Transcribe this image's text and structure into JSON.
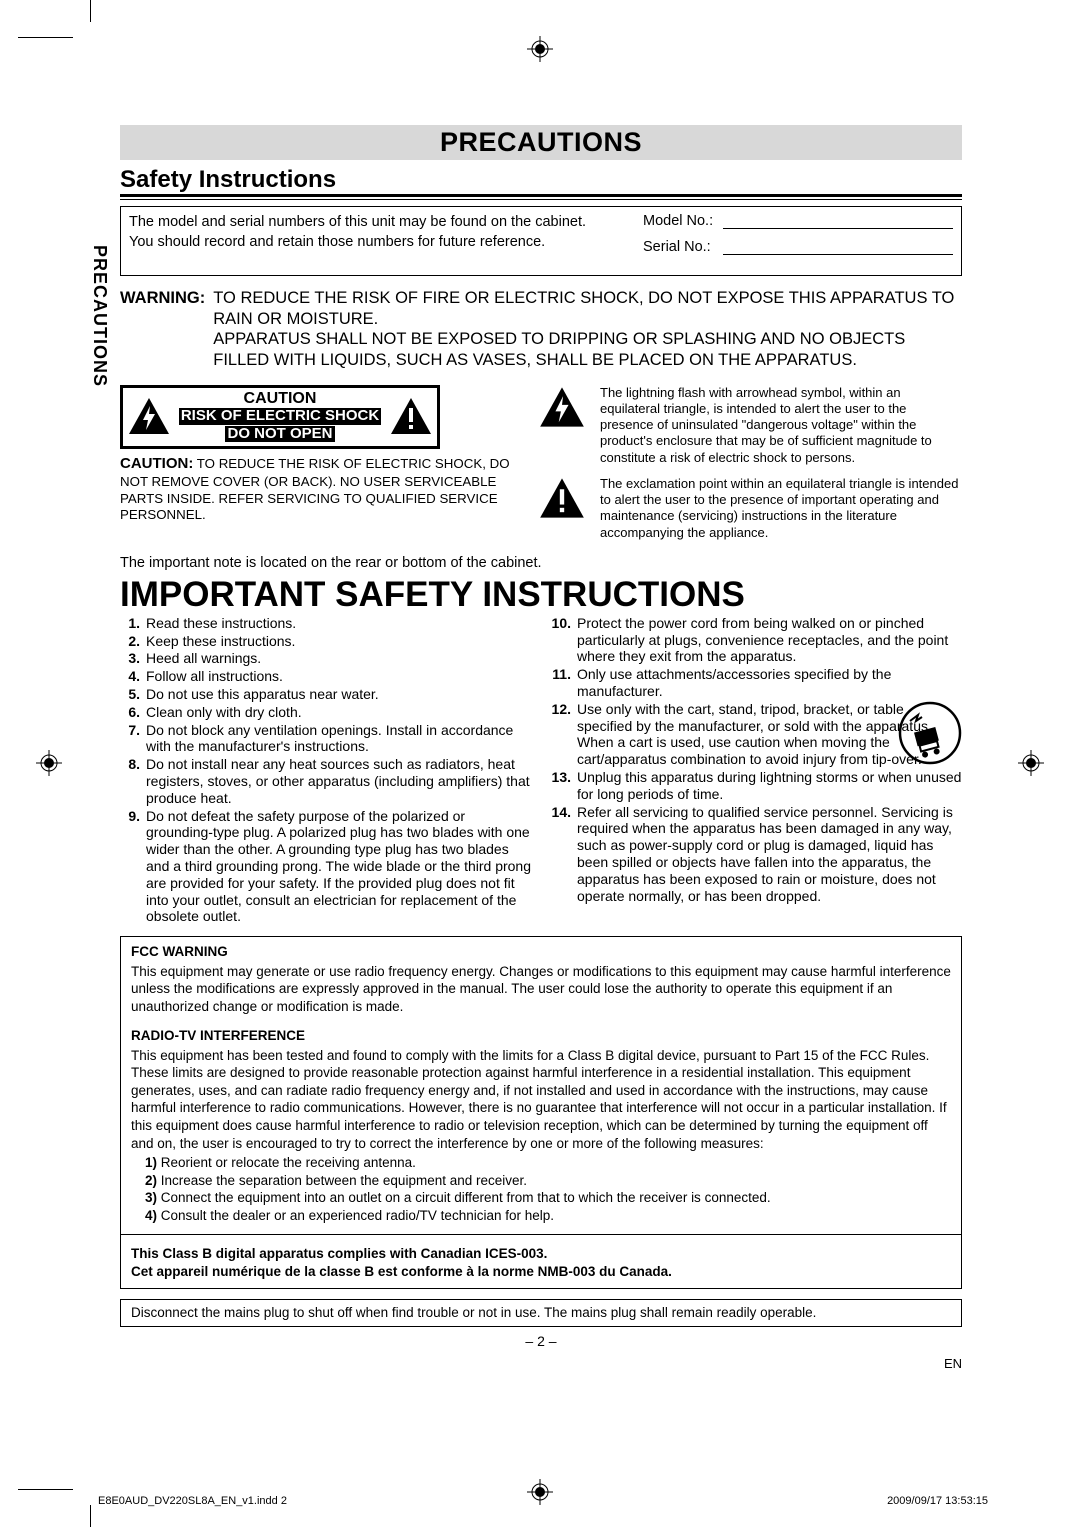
{
  "tab_label": "PRECAUTIONS",
  "title": "PRECAUTIONS",
  "subtitle": "Safety Instructions",
  "record": {
    "text1": "The model and serial numbers of this unit may be found on the cabinet.",
    "text2": "You should record and retain those numbers for future reference.",
    "model_label": "Model No.:",
    "serial_label": "Serial No.:"
  },
  "warning": {
    "label": "WARNING:",
    "line1": "TO REDUCE THE RISK OF FIRE OR ELECTRIC SHOCK, DO NOT EXPOSE THIS APPARATUS TO RAIN OR MOISTURE.",
    "line2": "APPARATUS SHALL NOT BE EXPOSED TO DRIPPING OR SPLASHING AND NO OBJECTS FILLED WITH LIQUIDS, SUCH AS VASES, SHALL BE PLACED ON THE APPARATUS."
  },
  "caution_box": {
    "line1": "CAUTION",
    "line2": "RISK OF ELECTRIC SHOCK",
    "line3": "DO NOT OPEN"
  },
  "caution_sub": {
    "bold": "CAUTION:",
    "text": " TO REDUCE THE RISK OF ELECTRIC SHOCK, DO NOT REMOVE COVER (OR BACK). NO USER SERVICEABLE PARTS INSIDE. REFER SERVICING TO QUALIFIED SERVICE PERSONNEL."
  },
  "symbol1": "The lightning flash with arrowhead symbol, within an equilateral triangle, is intended to alert the user to the presence of uninsulated \"dangerous voltage\" within the product's enclosure that may be of sufficient magnitude to constitute a risk of electric shock to persons.",
  "symbol2": "The exclamation point within an equilateral triangle is intended to alert the user to the presence of important operating and maintenance (servicing) instructions in the literature accompanying the appliance.",
  "important_note": "The important note is located on the rear or bottom of the cabinet.",
  "big_title": "IMPORTANT SAFETY INSTRUCTIONS",
  "instructions_a": [
    {
      "n": "1.",
      "t": "Read these instructions."
    },
    {
      "n": "2.",
      "t": "Keep these instructions."
    },
    {
      "n": "3.",
      "t": "Heed all warnings."
    },
    {
      "n": "4.",
      "t": "Follow all instructions."
    },
    {
      "n": "5.",
      "t": "Do not use this apparatus near water."
    },
    {
      "n": "6.",
      "t": "Clean only with dry cloth."
    },
    {
      "n": "7.",
      "t": "Do not block any ventilation openings. Install in accordance with the manufacturer's instructions."
    },
    {
      "n": "8.",
      "t": "Do not install near any heat sources such as radiators, heat registers, stoves, or other apparatus (including amplifiers) that produce heat."
    },
    {
      "n": "9.",
      "t": "Do not defeat the safety purpose of the polarized or grounding-type plug. A polarized plug has two blades with one wider than the other. A grounding type plug has two blades and a third grounding prong. The wide blade or the third prong are provided for your safety. If the provided plug does not fit into your outlet, consult an electrician for replacement of the obsolete outlet."
    }
  ],
  "instructions_b": [
    {
      "n": "10.",
      "t": "Protect the power cord from being walked on or pinched particularly at plugs, convenience receptacles, and the point where they exit from the apparatus."
    },
    {
      "n": "11.",
      "t": "Only use attachments/accessories specified by the manufacturer."
    },
    {
      "n": "12.",
      "t": "Use only with the cart, stand, tripod, bracket, or table specified by the manufacturer, or sold with the apparatus. When a cart is used, use caution when moving the cart/apparatus combination to avoid injury from tip-over."
    },
    {
      "n": "13.",
      "t": "Unplug this apparatus during lightning storms or when unused for long periods of time."
    },
    {
      "n": "14.",
      "t": "Refer all servicing to qualified service personnel. Servicing is required when the apparatus has been damaged in any way, such as power-supply cord or plug is damaged, liquid has been spilled or objects have fallen into the apparatus, the apparatus has been exposed to rain or moisture, does not operate normally, or has been dropped."
    }
  ],
  "fcc": {
    "hdr": "FCC WARNING",
    "body": "This equipment may generate or use radio frequency energy. Changes or modifications to this equipment may cause harmful interference unless the modifications are expressly approved in the manual. The user could lose the authority to operate this equipment if an unauthorized change or modification is made."
  },
  "radio": {
    "hdr": "RADIO-TV INTERFERENCE",
    "body": "This equipment has been tested and found to comply with the limits for a Class B digital device, pursuant to Part 15 of the FCC Rules. These limits are designed to provide reasonable protection against harmful interference in a residential installation. This equipment generates, uses, and can radiate radio frequency energy and, if not installed and used in accordance with the instructions, may cause harmful interference to radio communications. However, there is no guarantee that interference will not occur in a particular installation. If this equipment does cause harmful interference to radio or television reception, which can be determined by turning the equipment off and on, the user is encouraged to try to correct the interference by one or more of the following measures:",
    "m1": "Reorient or relocate the receiving antenna.",
    "m2": "Increase the separation between the equipment and receiver.",
    "m3": "Connect the equipment into an outlet on a circuit different from that to which the receiver is connected.",
    "m4": "Consult the dealer or an experienced radio/TV technician for help."
  },
  "ices": {
    "en": "This Class B digital apparatus complies with Canadian ICES-003.",
    "fr": "Cet appareil numérique de la classe B est conforme à la norme NMB-003 du Canada."
  },
  "disconnect": "Disconnect the mains plug to shut off when find trouble or not in use. The mains plug shall remain readily operable.",
  "page_num": "– 2 –",
  "lang": "EN",
  "print_left": "E8E0AUD_DV220SL8A_EN_v1.indd   2",
  "print_right": "2009/09/17   13:53:15"
}
